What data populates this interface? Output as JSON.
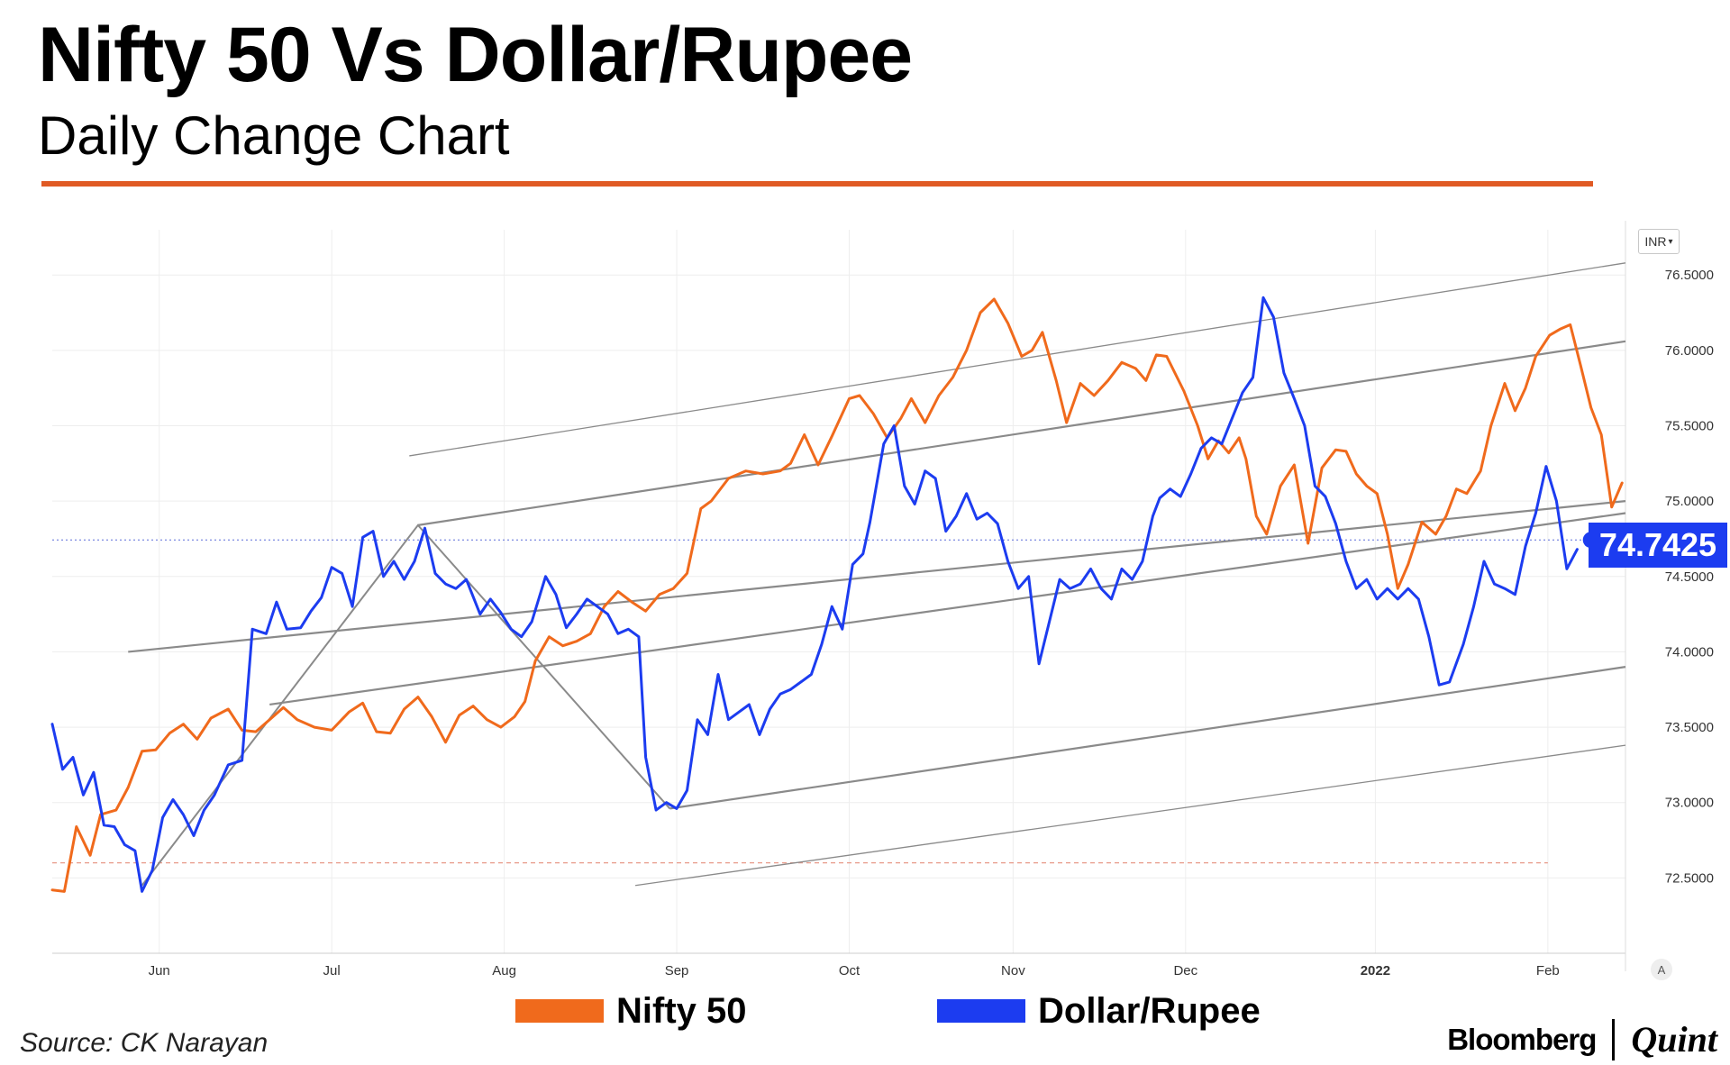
{
  "header": {
    "title": "Nifty 50 Vs Dollar/Rupee",
    "subtitle": "Daily Change Chart"
  },
  "colors": {
    "accent": "#e05a24",
    "nifty": "#f06a1c",
    "rupee": "#1c3cf0",
    "channel": "#888888"
  },
  "chart_data": {
    "type": "line",
    "currency_button": "INR",
    "last_value_label": "74.7425",
    "last_value": 74.7425,
    "ylim": [
      72.0,
      76.8
    ],
    "y_ticks": [
      72.5,
      73.0,
      73.5,
      74.0,
      74.5,
      75.0,
      75.5,
      76.0,
      76.5
    ],
    "y_tick_labels": [
      "72.5000",
      "73.0000",
      "73.5000",
      "74.0000",
      "74.5000",
      "75.0000",
      "75.5000",
      "76.0000",
      "76.5000"
    ],
    "x_ticks": [
      {
        "label": "Jun",
        "t": 1.0
      },
      {
        "label": "Jul",
        "t": 2.0
      },
      {
        "label": "Aug",
        "t": 3.0
      },
      {
        "label": "Sep",
        "t": 4.0
      },
      {
        "label": "Oct",
        "t": 5.0
      },
      {
        "label": "Nov",
        "t": 5.95
      },
      {
        "label": "Dec",
        "t": 6.95
      },
      {
        "label": "2022",
        "t": 8.05,
        "bold": true
      },
      {
        "label": "Feb",
        "t": 9.05
      }
    ],
    "xlim": [
      0.38,
      9.5
    ],
    "series": [
      {
        "name": "Nifty 50",
        "values": [
          [
            0.38,
            72.42
          ],
          [
            0.45,
            72.41
          ],
          [
            0.52,
            72.84
          ],
          [
            0.6,
            72.65
          ],
          [
            0.66,
            72.92
          ],
          [
            0.75,
            72.95
          ],
          [
            0.82,
            73.1
          ],
          [
            0.9,
            73.34
          ],
          [
            0.98,
            73.35
          ],
          [
            1.06,
            73.46
          ],
          [
            1.14,
            73.52
          ],
          [
            1.22,
            73.42
          ],
          [
            1.3,
            73.56
          ],
          [
            1.4,
            73.62
          ],
          [
            1.48,
            73.48
          ],
          [
            1.56,
            73.47
          ],
          [
            1.64,
            73.55
          ],
          [
            1.72,
            73.63
          ],
          [
            1.8,
            73.55
          ],
          [
            1.9,
            73.5
          ],
          [
            2.0,
            73.48
          ],
          [
            2.1,
            73.6
          ],
          [
            2.18,
            73.66
          ],
          [
            2.26,
            73.47
          ],
          [
            2.34,
            73.46
          ],
          [
            2.42,
            73.62
          ],
          [
            2.5,
            73.7
          ],
          [
            2.58,
            73.57
          ],
          [
            2.66,
            73.4
          ],
          [
            2.74,
            73.58
          ],
          [
            2.82,
            73.64
          ],
          [
            2.9,
            73.55
          ],
          [
            2.98,
            73.5
          ],
          [
            3.06,
            73.57
          ],
          [
            3.12,
            73.67
          ],
          [
            3.18,
            73.94
          ],
          [
            3.26,
            74.1
          ],
          [
            3.34,
            74.04
          ],
          [
            3.42,
            74.07
          ],
          [
            3.5,
            74.12
          ],
          [
            3.58,
            74.3
          ],
          [
            3.66,
            74.4
          ],
          [
            3.74,
            74.33
          ],
          [
            3.82,
            74.27
          ],
          [
            3.9,
            74.38
          ],
          [
            3.98,
            74.42
          ],
          [
            4.06,
            74.52
          ],
          [
            4.14,
            74.95
          ],
          [
            4.2,
            75.0
          ],
          [
            4.3,
            75.15
          ],
          [
            4.4,
            75.2
          ],
          [
            4.5,
            75.18
          ],
          [
            4.6,
            75.2
          ],
          [
            4.66,
            75.25
          ],
          [
            4.74,
            75.44
          ],
          [
            4.82,
            75.24
          ],
          [
            4.9,
            75.43
          ],
          [
            5.0,
            75.68
          ],
          [
            5.06,
            75.7
          ],
          [
            5.14,
            75.58
          ],
          [
            5.22,
            75.42
          ],
          [
            5.3,
            75.55
          ],
          [
            5.36,
            75.68
          ],
          [
            5.44,
            75.52
          ],
          [
            5.52,
            75.7
          ],
          [
            5.6,
            75.82
          ],
          [
            5.68,
            76.0
          ],
          [
            5.76,
            76.25
          ],
          [
            5.84,
            76.34
          ],
          [
            5.92,
            76.18
          ],
          [
            6.0,
            75.96
          ],
          [
            6.06,
            76.0
          ],
          [
            6.12,
            76.12
          ],
          [
            6.2,
            75.8
          ],
          [
            6.26,
            75.52
          ],
          [
            6.34,
            75.78
          ],
          [
            6.42,
            75.7
          ],
          [
            6.5,
            75.8
          ],
          [
            6.58,
            75.92
          ],
          [
            6.66,
            75.88
          ],
          [
            6.72,
            75.8
          ],
          [
            6.78,
            75.97
          ],
          [
            6.84,
            75.96
          ],
          [
            6.94,
            75.73
          ],
          [
            7.02,
            75.5
          ],
          [
            7.08,
            75.28
          ],
          [
            7.14,
            75.4
          ],
          [
            7.2,
            75.32
          ],
          [
            7.26,
            75.42
          ],
          [
            7.3,
            75.28
          ],
          [
            7.36,
            74.9
          ],
          [
            7.42,
            74.78
          ],
          [
            7.5,
            75.1
          ],
          [
            7.58,
            75.24
          ],
          [
            7.66,
            74.72
          ],
          [
            7.74,
            75.22
          ],
          [
            7.82,
            75.34
          ],
          [
            7.88,
            75.33
          ],
          [
            7.94,
            75.18
          ],
          [
            8.0,
            75.1
          ],
          [
            8.06,
            75.05
          ],
          [
            8.12,
            74.78
          ],
          [
            8.18,
            74.42
          ],
          [
            8.24,
            74.58
          ],
          [
            8.32,
            74.86
          ],
          [
            8.4,
            74.78
          ],
          [
            8.46,
            74.9
          ],
          [
            8.52,
            75.08
          ],
          [
            8.58,
            75.05
          ],
          [
            8.66,
            75.2
          ],
          [
            8.72,
            75.5
          ],
          [
            8.8,
            75.78
          ],
          [
            8.86,
            75.6
          ],
          [
            8.92,
            75.75
          ],
          [
            8.98,
            75.96
          ],
          [
            9.06,
            76.1
          ],
          [
            9.12,
            76.14
          ],
          [
            9.18,
            76.17
          ],
          [
            9.24,
            75.9
          ],
          [
            9.3,
            75.62
          ],
          [
            9.36,
            75.44
          ],
          [
            9.42,
            74.96
          ],
          [
            9.48,
            75.12
          ]
        ]
      },
      {
        "name": "Dollar/Rupee",
        "values": [
          [
            0.38,
            73.52
          ],
          [
            0.44,
            73.22
          ],
          [
            0.5,
            73.3
          ],
          [
            0.56,
            73.05
          ],
          [
            0.62,
            73.2
          ],
          [
            0.68,
            72.85
          ],
          [
            0.74,
            72.84
          ],
          [
            0.8,
            72.72
          ],
          [
            0.86,
            72.68
          ],
          [
            0.9,
            72.41
          ],
          [
            0.96,
            72.55
          ],
          [
            1.02,
            72.9
          ],
          [
            1.08,
            73.02
          ],
          [
            1.14,
            72.92
          ],
          [
            1.2,
            72.78
          ],
          [
            1.26,
            72.95
          ],
          [
            1.32,
            73.05
          ],
          [
            1.4,
            73.25
          ],
          [
            1.48,
            73.28
          ],
          [
            1.54,
            74.15
          ],
          [
            1.62,
            74.12
          ],
          [
            1.68,
            74.33
          ],
          [
            1.74,
            74.15
          ],
          [
            1.82,
            74.16
          ],
          [
            1.88,
            74.27
          ],
          [
            1.94,
            74.36
          ],
          [
            2.0,
            74.56
          ],
          [
            2.06,
            74.52
          ],
          [
            2.12,
            74.3
          ],
          [
            2.18,
            74.76
          ],
          [
            2.24,
            74.8
          ],
          [
            2.3,
            74.5
          ],
          [
            2.36,
            74.6
          ],
          [
            2.42,
            74.48
          ],
          [
            2.48,
            74.6
          ],
          [
            2.54,
            74.82
          ],
          [
            2.6,
            74.52
          ],
          [
            2.66,
            74.45
          ],
          [
            2.72,
            74.42
          ],
          [
            2.78,
            74.48
          ],
          [
            2.86,
            74.25
          ],
          [
            2.92,
            74.35
          ],
          [
            2.98,
            74.26
          ],
          [
            3.04,
            74.15
          ],
          [
            3.1,
            74.1
          ],
          [
            3.16,
            74.2
          ],
          [
            3.24,
            74.5
          ],
          [
            3.3,
            74.38
          ],
          [
            3.36,
            74.16
          ],
          [
            3.42,
            74.25
          ],
          [
            3.48,
            74.35
          ],
          [
            3.54,
            74.3
          ],
          [
            3.6,
            74.25
          ],
          [
            3.66,
            74.12
          ],
          [
            3.72,
            74.15
          ],
          [
            3.78,
            74.1
          ],
          [
            3.82,
            73.3
          ],
          [
            3.88,
            72.95
          ],
          [
            3.94,
            73.0
          ],
          [
            4.0,
            72.96
          ],
          [
            4.06,
            73.08
          ],
          [
            4.12,
            73.55
          ],
          [
            4.18,
            73.45
          ],
          [
            4.24,
            73.85
          ],
          [
            4.3,
            73.55
          ],
          [
            4.36,
            73.6
          ],
          [
            4.42,
            73.65
          ],
          [
            4.48,
            73.45
          ],
          [
            4.54,
            73.62
          ],
          [
            4.6,
            73.72
          ],
          [
            4.66,
            73.75
          ],
          [
            4.72,
            73.8
          ],
          [
            4.78,
            73.85
          ],
          [
            4.84,
            74.05
          ],
          [
            4.9,
            74.3
          ],
          [
            4.96,
            74.15
          ],
          [
            5.02,
            74.58
          ],
          [
            5.08,
            74.65
          ],
          [
            5.12,
            74.86
          ],
          [
            5.2,
            75.38
          ],
          [
            5.26,
            75.5
          ],
          [
            5.32,
            75.1
          ],
          [
            5.38,
            74.98
          ],
          [
            5.44,
            75.2
          ],
          [
            5.5,
            75.15
          ],
          [
            5.56,
            74.8
          ],
          [
            5.62,
            74.9
          ],
          [
            5.68,
            75.05
          ],
          [
            5.74,
            74.88
          ],
          [
            5.8,
            74.92
          ],
          [
            5.86,
            74.85
          ],
          [
            5.92,
            74.6
          ],
          [
            5.98,
            74.42
          ],
          [
            6.04,
            74.5
          ],
          [
            6.1,
            73.92
          ],
          [
            6.16,
            74.2
          ],
          [
            6.22,
            74.48
          ],
          [
            6.28,
            74.42
          ],
          [
            6.34,
            74.45
          ],
          [
            6.4,
            74.55
          ],
          [
            6.46,
            74.42
          ],
          [
            6.52,
            74.35
          ],
          [
            6.58,
            74.55
          ],
          [
            6.64,
            74.48
          ],
          [
            6.7,
            74.6
          ],
          [
            6.76,
            74.9
          ],
          [
            6.8,
            75.02
          ],
          [
            6.86,
            75.08
          ],
          [
            6.92,
            75.03
          ],
          [
            6.98,
            75.18
          ],
          [
            7.04,
            75.35
          ],
          [
            7.1,
            75.42
          ],
          [
            7.16,
            75.38
          ],
          [
            7.22,
            75.55
          ],
          [
            7.28,
            75.72
          ],
          [
            7.34,
            75.82
          ],
          [
            7.4,
            76.35
          ],
          [
            7.46,
            76.22
          ],
          [
            7.52,
            75.85
          ],
          [
            7.58,
            75.68
          ],
          [
            7.64,
            75.5
          ],
          [
            7.7,
            75.1
          ],
          [
            7.76,
            75.03
          ],
          [
            7.82,
            74.85
          ],
          [
            7.88,
            74.6
          ],
          [
            7.94,
            74.42
          ],
          [
            8.0,
            74.48
          ],
          [
            8.06,
            74.35
          ],
          [
            8.12,
            74.42
          ],
          [
            8.18,
            74.35
          ],
          [
            8.24,
            74.42
          ],
          [
            8.3,
            74.35
          ],
          [
            8.36,
            74.1
          ],
          [
            8.42,
            73.78
          ],
          [
            8.48,
            73.8
          ],
          [
            8.56,
            74.05
          ],
          [
            8.62,
            74.3
          ],
          [
            8.68,
            74.6
          ],
          [
            8.74,
            74.45
          ],
          [
            8.8,
            74.42
          ],
          [
            8.86,
            74.38
          ],
          [
            8.92,
            74.7
          ],
          [
            8.98,
            74.92
          ],
          [
            9.04,
            75.23
          ],
          [
            9.1,
            75.0
          ],
          [
            9.16,
            74.55
          ],
          [
            9.22,
            74.68
          ]
        ]
      }
    ],
    "channel_lines": [
      [
        [
          2.45,
          75.3
        ],
        [
          9.5,
          76.58
        ]
      ],
      [
        [
          2.5,
          74.84
        ],
        [
          9.5,
          76.06
        ]
      ],
      [
        [
          0.82,
          74.0
        ],
        [
          9.5,
          75.0
        ]
      ],
      [
        [
          1.64,
          73.65
        ],
        [
          9.5,
          74.92
        ]
      ],
      [
        [
          3.96,
          72.96
        ],
        [
          9.5,
          73.9
        ]
      ],
      [
        [
          3.76,
          72.45
        ],
        [
          9.5,
          73.38
        ]
      ]
    ],
    "pitchfork": [
      [
        0.9,
        72.45
      ],
      [
        2.5,
        74.84
      ],
      [
        3.96,
        72.96
      ]
    ],
    "dashed_baseline": 72.6,
    "current_line_value": 74.7425
  },
  "legend": [
    {
      "name": "Nifty 50",
      "color": "#f06a1c"
    },
    {
      "name": "Dollar/Rupee",
      "color": "#1c3cf0"
    }
  ],
  "footer": {
    "source": "Source: CK Narayan",
    "brand_a": "Bloomberg",
    "brand_b": "Quint"
  },
  "chart_controls": {
    "auto_button": "A"
  }
}
